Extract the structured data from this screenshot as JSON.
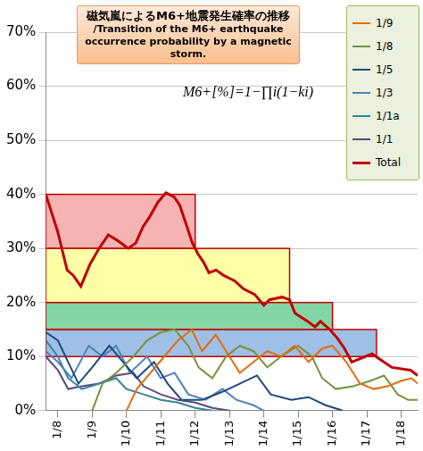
{
  "chart_data": {
    "type": "line",
    "title": "磁気嵐によるM6+地震発生確率の推移",
    "subtitle": "/Transition of the M6+ earthquake occurrence probability by a magnetic storm.",
    "annotations": [
      {
        "text": "M6+[%]=1−∏i(1−ki)"
      }
    ],
    "xlim": [
      7.65,
      18.48
    ],
    "xticks": [
      {
        "value": 8,
        "label": "1/8"
      },
      {
        "value": 9,
        "label": "1/9"
      },
      {
        "value": 10,
        "label": "1/10"
      },
      {
        "value": 11,
        "label": "1/11"
      },
      {
        "value": 12,
        "label": "1/12"
      },
      {
        "value": 13,
        "label": "1/13"
      },
      {
        "value": 14,
        "label": "1/14"
      },
      {
        "value": 15,
        "label": "1/15"
      },
      {
        "value": 16,
        "label": "1/16"
      },
      {
        "value": 17,
        "label": "1/17"
      },
      {
        "value": 18,
        "label": "1/18"
      }
    ],
    "ylim": [
      0,
      70
    ],
    "yticks": [
      {
        "value": 0,
        "label": "0%"
      },
      {
        "value": 10,
        "label": "10%"
      },
      {
        "value": 20,
        "label": "20%"
      },
      {
        "value": 30,
        "label": "30%"
      },
      {
        "value": 40,
        "label": "40%"
      },
      {
        "value": 50,
        "label": "50%"
      },
      {
        "value": 60,
        "label": "60%"
      },
      {
        "value": 70,
        "label": "70%"
      }
    ],
    "grid": "y",
    "legend": "top-right",
    "bands": [
      {
        "x": [
          7.65,
          12.0
        ],
        "y": [
          30,
          40
        ],
        "color": "#f4a6a6"
      },
      {
        "x": [
          7.65,
          14.75
        ],
        "y": [
          20,
          30
        ],
        "color": "#ffff99"
      },
      {
        "x": [
          7.65,
          16.0
        ],
        "y": [
          15,
          20
        ],
        "color": "#6fcf97"
      },
      {
        "x": [
          7.65,
          17.28
        ],
        "y": [
          10,
          15
        ],
        "color": "#8db4e2"
      }
    ],
    "series": [
      {
        "name": "1/9",
        "color": "#e46c0a",
        "x": [
          10.0,
          10.3,
          10.7,
          11.1,
          11.5,
          11.9,
          12.2,
          12.6,
          13.0,
          13.3,
          13.7,
          14.1,
          14.5,
          14.9,
          15.3,
          15.7,
          16.0,
          16.4,
          16.8,
          17.2,
          17.6,
          18.0,
          18.3,
          18.48
        ],
        "values": [
          0,
          4,
          7,
          10,
          13,
          15,
          11,
          14,
          10,
          7,
          9,
          11,
          10,
          12,
          9,
          11.5,
          12,
          9,
          5,
          4,
          4.5,
          5.5,
          6,
          5
        ]
      },
      {
        "name": "1/8",
        "color": "#77933c",
        "x": [
          9.0,
          9.3,
          9.7,
          10.2,
          10.6,
          11.0,
          11.4,
          11.8,
          12.1,
          12.5,
          12.9,
          13.3,
          13.7,
          14.1,
          14.5,
          15.0,
          15.4,
          15.7,
          16.1,
          16.6,
          17.1,
          17.5,
          17.9,
          18.2,
          18.48
        ],
        "values": [
          0,
          5,
          7,
          10,
          13,
          14.5,
          15,
          12,
          8,
          6,
          10,
          12,
          11,
          8,
          10,
          12,
          10,
          6,
          4,
          4.5,
          5.5,
          6.5,
          3,
          2,
          2
        ]
      },
      {
        "name": "1/5",
        "color": "#1f497d",
        "x": [
          7.65,
          8.0,
          8.3,
          8.6,
          9.0,
          9.5,
          9.9,
          10.3,
          10.8,
          11.2,
          11.6,
          12.2,
          12.8,
          13.3,
          13.8,
          14.2,
          14.8,
          15.3,
          15.8,
          16.3
        ],
        "values": [
          14.5,
          13,
          9,
          5,
          8,
          12,
          9,
          6,
          9,
          5,
          2,
          2,
          3.5,
          5,
          6.5,
          3,
          2,
          2.5,
          1,
          0
        ]
      },
      {
        "name": "1/3",
        "color": "#4f81bd",
        "x": [
          7.65,
          8.0,
          8.4,
          8.9,
          9.3,
          9.7,
          10.1,
          10.6,
          11.0,
          11.4,
          11.8,
          12.3,
          12.8,
          13.2,
          13.7,
          14.0
        ],
        "values": [
          11,
          9,
          6,
          12,
          10,
          12,
          7,
          10,
          6,
          7,
          3,
          2,
          4,
          2,
          1,
          0
        ]
      },
      {
        "name": "1/1a",
        "color": "#31859c",
        "x": [
          7.65,
          8.0,
          8.3,
          8.7,
          9.2,
          9.7,
          10.0,
          10.5,
          11.0,
          11.5,
          12.0,
          12.5
        ],
        "values": [
          13,
          10,
          6,
          4,
          5,
          6,
          4,
          3,
          2,
          1.5,
          0.5,
          0
        ]
      },
      {
        "name": "1/1",
        "color": "#5f497a",
        "x": [
          7.65,
          8.0,
          8.3,
          8.7,
          9.2,
          9.7,
          10.2,
          10.5,
          11.0,
          11.5,
          12.0,
          12.5,
          13.0
        ],
        "values": [
          10,
          7.5,
          4,
          4.5,
          5,
          6.5,
          7,
          4.5,
          3,
          2,
          1.5,
          0.5,
          0
        ]
      },
      {
        "name": "Total",
        "color": "#c00000",
        "x": [
          7.65,
          8.0,
          8.27,
          8.45,
          8.67,
          8.93,
          9.2,
          9.47,
          9.73,
          10.05,
          10.27,
          10.48,
          10.69,
          10.91,
          11.15,
          11.39,
          11.55,
          11.71,
          11.92,
          12.08,
          12.24,
          12.4,
          12.61,
          12.83,
          12.99,
          13.15,
          13.41,
          13.73,
          14.0,
          14.16,
          14.53,
          14.75,
          14.91,
          15.28,
          15.49,
          15.65,
          15.92,
          16.13,
          16.35,
          16.56,
          17.15,
          17.73,
          18.27,
          18.48
        ],
        "values": [
          40,
          33,
          26,
          25,
          23,
          27,
          30,
          32.5,
          31.5,
          30,
          31,
          34,
          36,
          38.5,
          40.3,
          39.5,
          38,
          35,
          31,
          29,
          27.5,
          25.5,
          26,
          25,
          24.5,
          24,
          22.5,
          21.5,
          19.5,
          20.5,
          21,
          20.5,
          18,
          16.5,
          15.5,
          16.5,
          15,
          13.5,
          11.5,
          9,
          10.5,
          8,
          7.5,
          6.5
        ]
      }
    ]
  }
}
